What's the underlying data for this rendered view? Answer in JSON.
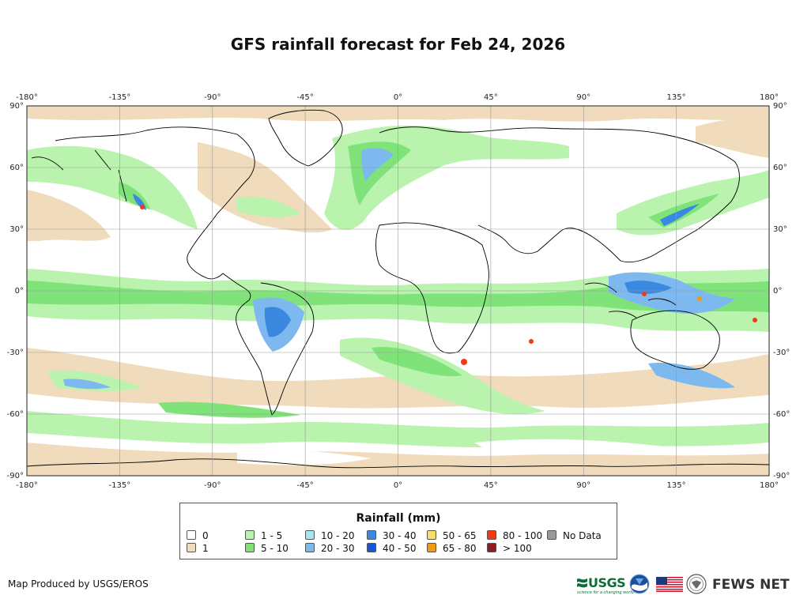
{
  "title": "GFS rainfall forecast for Feb 24, 2026",
  "map": {
    "lon_ticks": [
      "-180°",
      "-135°",
      "-90°",
      "-45°",
      "0°",
      "45°",
      "90°",
      "135°",
      "180°"
    ],
    "lat_ticks": [
      "90°",
      "60°",
      "30°",
      "0°",
      "-30°",
      "-60°",
      "-90°"
    ]
  },
  "legend": {
    "title": "Rainfall (mm)",
    "items": [
      {
        "label": "0",
        "color": "#ffffff"
      },
      {
        "label": "1",
        "color": "#f0dcbc"
      },
      {
        "label": "1 - 5",
        "color": "#b9f3ae"
      },
      {
        "label": "5 - 10",
        "color": "#7fe37a"
      },
      {
        "label": "10 - 20",
        "color": "#a8e7f2"
      },
      {
        "label": "20 - 30",
        "color": "#7db9ee"
      },
      {
        "label": "30 - 40",
        "color": "#3a88e0"
      },
      {
        "label": "40 - 50",
        "color": "#1655d6"
      },
      {
        "label": "50 - 65",
        "color": "#f6df6a"
      },
      {
        "label": "65 - 80",
        "color": "#f39a0e"
      },
      {
        "label": "80 - 100",
        "color": "#f23a14"
      },
      {
        "label": "> 100",
        "color": "#8f1f1f"
      },
      {
        "label": "No Data",
        "color": "#999999"
      }
    ]
  },
  "credit": "Map Produced by USGS/EROS",
  "logos": {
    "usgs": "USGS",
    "usgs_tagline": "science for a changing world",
    "fews": "FEWS NET"
  },
  "colors": {
    "land_outline": "#000000",
    "grid": "#9a9a9a",
    "usgs_green": "#0e6b3a"
  }
}
